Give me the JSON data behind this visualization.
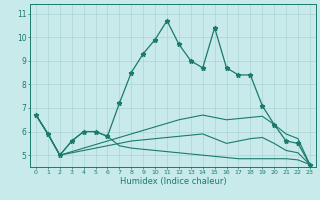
{
  "xlabel": "Humidex (Indice chaleur)",
  "background_color": "#c8eaea",
  "grid_color": "#aed4d4",
  "line_color": "#1a7a6e",
  "xlim": [
    -0.5,
    23.5
  ],
  "ylim": [
    4.5,
    11.4
  ],
  "xticks": [
    0,
    1,
    2,
    3,
    4,
    5,
    6,
    7,
    8,
    9,
    10,
    11,
    12,
    13,
    14,
    15,
    16,
    17,
    18,
    19,
    20,
    21,
    22,
    23
  ],
  "yticks": [
    5,
    6,
    7,
    8,
    9,
    10,
    11
  ],
  "series": [
    [
      6.7,
      5.9,
      5.0,
      5.6,
      6.0,
      6.0,
      5.8,
      7.2,
      8.5,
      9.3,
      9.9,
      10.7,
      9.7,
      9.0,
      8.7,
      10.4,
      8.7,
      8.4,
      8.4,
      7.1,
      6.3,
      5.6,
      5.5,
      4.6
    ],
    [
      6.7,
      5.9,
      5.0,
      5.6,
      6.0,
      6.0,
      5.8,
      5.4,
      5.3,
      5.25,
      5.2,
      5.15,
      5.1,
      5.05,
      5.0,
      4.95,
      4.9,
      4.85,
      4.85,
      4.85,
      4.85,
      4.85,
      4.8,
      4.6
    ],
    [
      6.7,
      5.9,
      5.0,
      5.15,
      5.3,
      5.45,
      5.6,
      5.75,
      5.9,
      6.05,
      6.2,
      6.35,
      6.5,
      6.6,
      6.7,
      6.6,
      6.5,
      6.55,
      6.6,
      6.65,
      6.3,
      5.9,
      5.7,
      4.6
    ],
    [
      6.7,
      5.9,
      5.0,
      5.1,
      5.2,
      5.3,
      5.4,
      5.5,
      5.6,
      5.65,
      5.7,
      5.75,
      5.8,
      5.85,
      5.9,
      5.7,
      5.5,
      5.6,
      5.7,
      5.75,
      5.5,
      5.2,
      5.1,
      4.6
    ]
  ]
}
